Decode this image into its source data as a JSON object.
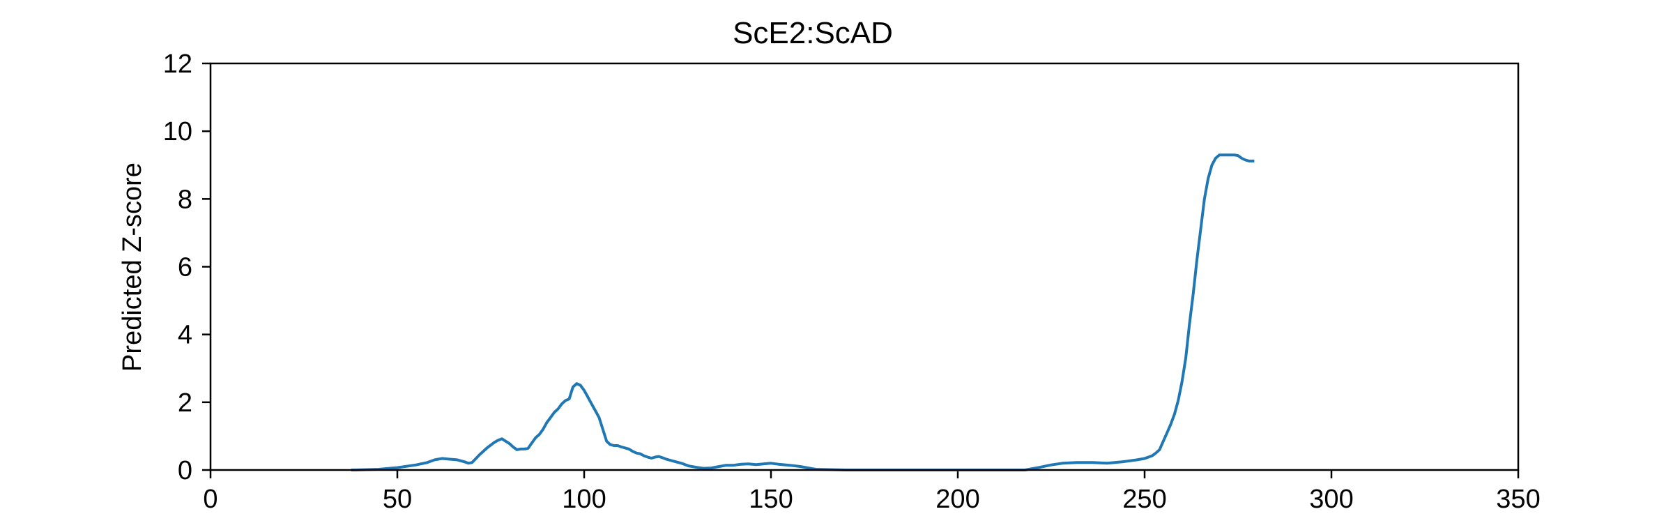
{
  "chart_data": {
    "type": "line",
    "title": "ScE2:ScAD",
    "xlabel": "",
    "ylabel": "Predicted Z-score",
    "xlim": [
      0,
      350
    ],
    "ylim": [
      0,
      12
    ],
    "xticks": [
      0,
      50,
      100,
      150,
      200,
      250,
      300,
      350
    ],
    "xtick_labels": [
      "0",
      "50",
      "100",
      "150",
      "200",
      "250",
      "300",
      "350"
    ],
    "yticks": [
      0,
      2,
      4,
      6,
      8,
      10,
      12
    ],
    "ytick_labels": [
      "0",
      "2",
      "4",
      "6",
      "8",
      "10",
      "12"
    ],
    "grid": false,
    "legend": "none",
    "line_color": "#1f77b4",
    "series": [
      {
        "x": [
          38,
          45,
          50,
          55,
          58,
          60,
          62,
          64,
          66,
          68,
          69,
          70,
          72,
          74,
          76,
          77,
          78,
          80,
          81,
          82,
          83,
          84,
          85,
          86,
          87,
          88,
          89,
          90,
          91,
          92,
          93,
          94,
          95,
          96,
          97,
          98,
          99,
          100,
          101,
          102,
          103,
          104,
          105,
          106,
          107,
          108,
          109,
          110,
          111,
          112,
          113,
          114,
          115,
          116,
          117,
          118,
          119,
          120,
          121,
          122,
          124,
          126,
          128,
          130,
          132,
          134,
          136,
          138,
          140,
          142,
          144,
          146,
          148,
          150,
          152,
          155,
          158,
          160,
          162,
          170,
          185,
          200,
          218,
          222,
          225,
          228,
          232,
          236,
          240,
          244,
          248,
          250,
          252,
          253,
          254,
          255,
          256,
          257,
          258,
          259,
          260,
          261,
          262,
          263,
          264,
          265,
          266,
          267,
          268,
          269,
          270,
          271,
          272,
          273,
          274,
          275,
          276,
          277,
          278,
          279
        ],
        "y": [
          0,
          0.02,
          0.07,
          0.15,
          0.22,
          0.3,
          0.34,
          0.32,
          0.3,
          0.24,
          0.2,
          0.22,
          0.45,
          0.65,
          0.82,
          0.88,
          0.92,
          0.78,
          0.68,
          0.6,
          0.62,
          0.62,
          0.64,
          0.8,
          0.95,
          1.05,
          1.2,
          1.4,
          1.55,
          1.7,
          1.8,
          1.95,
          2.05,
          2.1,
          2.45,
          2.55,
          2.5,
          2.35,
          2.15,
          1.95,
          1.75,
          1.55,
          1.2,
          0.85,
          0.75,
          0.72,
          0.72,
          0.68,
          0.65,
          0.62,
          0.55,
          0.5,
          0.48,
          0.42,
          0.38,
          0.35,
          0.38,
          0.4,
          0.36,
          0.32,
          0.26,
          0.2,
          0.12,
          0.08,
          0.05,
          0.06,
          0.1,
          0.14,
          0.14,
          0.17,
          0.18,
          0.16,
          0.18,
          0.2,
          0.17,
          0.14,
          0.1,
          0.06,
          0.02,
          0,
          0,
          0,
          0,
          0.08,
          0.15,
          0.2,
          0.22,
          0.22,
          0.2,
          0.24,
          0.3,
          0.34,
          0.42,
          0.5,
          0.6,
          0.85,
          1.1,
          1.35,
          1.65,
          2.05,
          2.6,
          3.3,
          4.3,
          5.2,
          6.2,
          7.1,
          8.0,
          8.6,
          9.0,
          9.2,
          9.3,
          9.3,
          9.3,
          9.3,
          9.3,
          9.28,
          9.2,
          9.15,
          9.12,
          9.12
        ]
      }
    ]
  }
}
